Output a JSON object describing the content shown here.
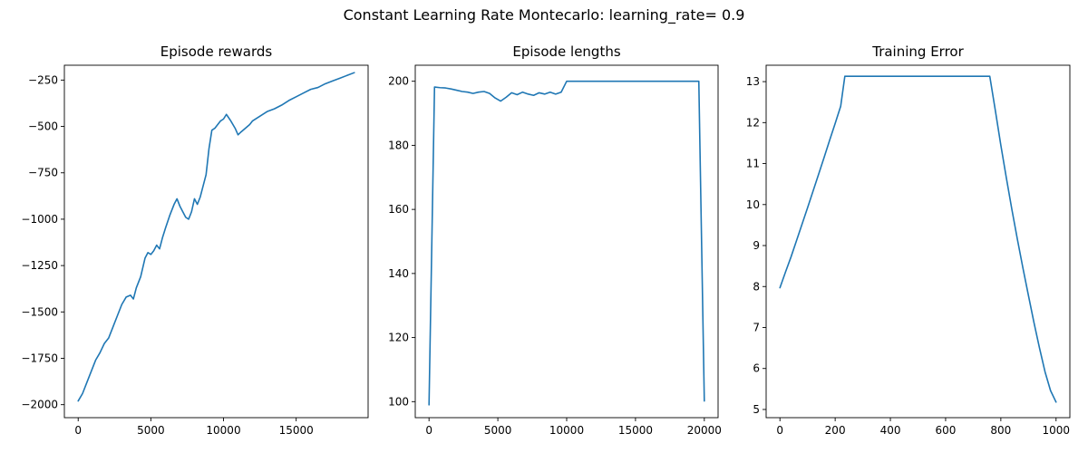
{
  "figure": {
    "suptitle": "Constant Learning Rate Montecarlo: learning_rate= 0.9"
  },
  "chart_data": [
    {
      "type": "line",
      "title": "Episode rewards",
      "xlabel": "",
      "ylabel": "",
      "xlim": [
        -950,
        19950
      ],
      "ylim": [
        -2070,
        -170
      ],
      "xticks": [
        0,
        5000,
        10000,
        15000
      ],
      "xtick_labels": [
        "0",
        "5000",
        "10000",
        "15000"
      ],
      "yticks": [
        -2000,
        -1750,
        -1500,
        -1250,
        -1000,
        -750,
        -500,
        -250
      ],
      "ytick_labels": [
        "−2000",
        "−1750",
        "−1500",
        "−1250",
        "−1000",
        "−750",
        "−500",
        "−250"
      ],
      "grid": false,
      "color": "#1f77b4",
      "series": [
        {
          "x": [
            0,
            300,
            600,
            900,
            1200,
            1500,
            1800,
            2100,
            2400,
            2700,
            3000,
            3300,
            3600,
            3800,
            4000,
            4300,
            4600,
            4800,
            5000,
            5200,
            5400,
            5600,
            5800,
            6000,
            6300,
            6600,
            6800,
            7000,
            7200,
            7400,
            7600,
            7800,
            8000,
            8200,
            8400,
            8600,
            8800,
            9000,
            9200,
            9400,
            9600,
            9800,
            10000,
            10200,
            10500,
            10800,
            11000,
            11200,
            11500,
            11800,
            12000,
            12500,
            13000,
            13500,
            14000,
            14500,
            15000,
            15500,
            16000,
            16500,
            17000,
            17500,
            18000,
            18500,
            19000
          ],
          "y": [
            -1980,
            -1940,
            -1880,
            -1820,
            -1760,
            -1720,
            -1670,
            -1640,
            -1580,
            -1520,
            -1460,
            -1420,
            -1410,
            -1430,
            -1370,
            -1310,
            -1210,
            -1180,
            -1190,
            -1170,
            -1140,
            -1160,
            -1100,
            -1050,
            -980,
            -920,
            -890,
            -930,
            -960,
            -990,
            -1000,
            -960,
            -890,
            -920,
            -880,
            -820,
            -760,
            -620,
            -520,
            -510,
            -490,
            -470,
            -460,
            -435,
            -470,
            -510,
            -545,
            -530,
            -510,
            -490,
            -470,
            -445,
            -420,
            -405,
            -385,
            -360,
            -340,
            -320,
            -300,
            -290,
            -270,
            -255,
            -240,
            -225,
            -210
          ]
        }
      ]
    },
    {
      "type": "line",
      "title": "Episode lengths",
      "xlabel": "",
      "ylabel": "",
      "xlim": [
        -1000,
        21000
      ],
      "ylim": [
        95.0,
        205.0
      ],
      "xticks": [
        0,
        5000,
        10000,
        15000,
        20000
      ],
      "xtick_labels": [
        "0",
        "5000",
        "10000",
        "15000",
        "20000"
      ],
      "yticks": [
        100,
        120,
        140,
        160,
        180,
        200
      ],
      "ytick_labels": [
        "100",
        "120",
        "140",
        "160",
        "180",
        "200"
      ],
      "grid": false,
      "color": "#1f77b4",
      "series": [
        {
          "x": [
            0,
            400,
            800,
            1200,
            1600,
            2000,
            2400,
            2800,
            3200,
            3600,
            4000,
            4400,
            4800,
            5200,
            5600,
            6000,
            6400,
            6800,
            7200,
            7600,
            8000,
            8400,
            8800,
            9200,
            9600,
            10000,
            12000,
            14000,
            16000,
            18000,
            19600,
            20000
          ],
          "y": [
            99.0,
            198.2,
            198.0,
            197.9,
            197.6,
            197.2,
            196.8,
            196.6,
            196.2,
            196.6,
            196.8,
            196.2,
            194.8,
            193.8,
            195.0,
            196.4,
            195.8,
            196.6,
            196.0,
            195.6,
            196.4,
            196.0,
            196.6,
            196.0,
            196.6,
            200.0,
            200.0,
            200.0,
            200.0,
            200.0,
            200.0,
            100.2
          ]
        }
      ]
    },
    {
      "type": "line",
      "title": "Training Error",
      "xlabel": "",
      "ylabel": "",
      "xlim": [
        -50,
        1050
      ],
      "ylim": [
        4.8,
        13.4
      ],
      "xticks": [
        0,
        200,
        400,
        600,
        800,
        1000
      ],
      "xtick_labels": [
        "0",
        "200",
        "400",
        "600",
        "800",
        "1000"
      ],
      "yticks": [
        5,
        6,
        7,
        8,
        9,
        10,
        11,
        12,
        13
      ],
      "ytick_labels": [
        "5",
        "6",
        "7",
        "8",
        "9",
        "10",
        "11",
        "12",
        "13"
      ],
      "grid": false,
      "color": "#1f77b4",
      "series": [
        {
          "x": [
            0,
            20,
            40,
            60,
            80,
            100,
            120,
            140,
            160,
            180,
            200,
            220,
            235,
            400,
            600,
            760,
            780,
            800,
            820,
            840,
            860,
            880,
            900,
            920,
            940,
            960,
            980,
            1000
          ],
          "y": [
            7.97,
            8.35,
            8.72,
            9.12,
            9.52,
            9.92,
            10.33,
            10.74,
            11.15,
            11.57,
            11.98,
            12.4,
            13.13,
            13.13,
            13.13,
            13.13,
            12.3,
            11.45,
            10.65,
            9.88,
            9.15,
            8.45,
            7.78,
            7.12,
            6.5,
            5.92,
            5.46,
            5.18
          ]
        }
      ]
    }
  ]
}
